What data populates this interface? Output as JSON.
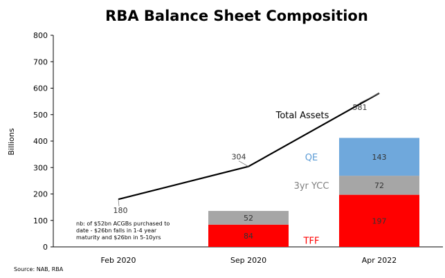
{
  "chart_data": {
    "type": "bar",
    "title": "RBA Balance Sheet Composition",
    "ylabel": "Billions",
    "xlabel": "",
    "ylim": [
      0,
      800
    ],
    "yticks": [
      0,
      100,
      200,
      300,
      400,
      500,
      600,
      700,
      800
    ],
    "grid": false,
    "categories": [
      "Feb 2020",
      "Sep 2020",
      "Apr 2022"
    ],
    "stacked_series": [
      {
        "name": "TFF",
        "values": [
          null,
          84,
          197
        ],
        "color": "#ff0000",
        "label_color": "#ff0000"
      },
      {
        "name": "3yr YCC",
        "values": [
          null,
          52,
          72
        ],
        "color": "#a6a6a6",
        "label_color": "#7f7f7f"
      },
      {
        "name": "QE",
        "values": [
          null,
          null,
          143
        ],
        "color": "#6fa8dc",
        "label_color": "#5b9bd5"
      }
    ],
    "line_series": {
      "name": "Total Assets",
      "values": [
        180,
        304,
        581
      ],
      "color": "#000000"
    },
    "annotation": "nb: of $52bn ACGBs purchased to date - $26bn falls in 1-4 year maturity and $26bn in 5-10yrs",
    "source": "Source: NAB, RBA"
  }
}
